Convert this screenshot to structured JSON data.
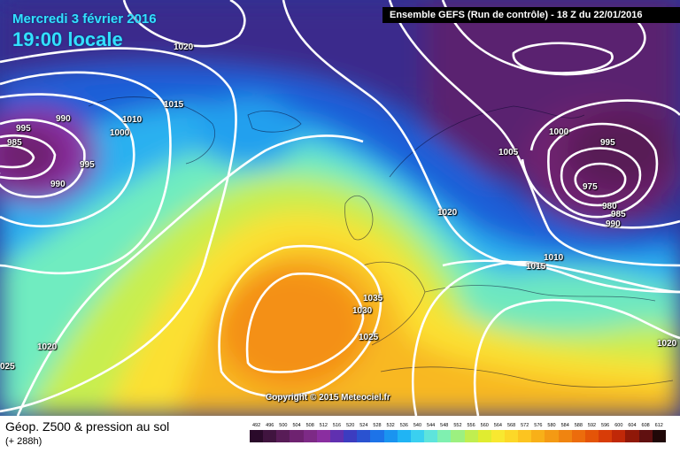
{
  "header": {
    "date": "Mercredi 3 février 2016",
    "time": "19:00 locale",
    "run_info": "Ensemble GEFS  (Run de contrôle)  -  18 Z du 22/01/2016"
  },
  "copyright": "Copyright © 2015 Meteociel.fr",
  "footer": {
    "title": "Géop. Z500 & pression au sol",
    "subtitle": "(+ 288h)"
  },
  "isobar_labels": [
    {
      "text": "1020"
    },
    {
      "text": "995"
    },
    {
      "text": "990"
    },
    {
      "text": "1010"
    },
    {
      "text": "1000"
    },
    {
      "text": "1015"
    },
    {
      "text": "985"
    },
    {
      "text": "995"
    },
    {
      "text": "990"
    },
    {
      "text": "1000"
    },
    {
      "text": "995"
    },
    {
      "text": "1005"
    },
    {
      "text": "975"
    },
    {
      "text": "980"
    },
    {
      "text": "985"
    },
    {
      "text": "990"
    },
    {
      "text": "1020"
    },
    {
      "text": "1010"
    },
    {
      "text": "1015"
    },
    {
      "text": "1035"
    },
    {
      "text": "1030"
    },
    {
      "text": "1025"
    },
    {
      "text": "1020"
    },
    {
      "text": "025"
    },
    {
      "text": "1020"
    }
  ],
  "legend": {
    "values": [
      "492",
      "496",
      "500",
      "504",
      "508",
      "512",
      "516",
      "520",
      "524",
      "528",
      "532",
      "536",
      "540",
      "544",
      "548",
      "552",
      "556",
      "560",
      "564",
      "568",
      "572",
      "576",
      "580",
      "584",
      "588",
      "592",
      "596",
      "600",
      "604",
      "608",
      "612"
    ],
    "colors": [
      "#2a0a2a",
      "#40143f",
      "#581c57",
      "#6e2270",
      "#7d2a86",
      "#8a2ea0",
      "#6030b0",
      "#3c3cc0",
      "#2a52d0",
      "#1d73e8",
      "#1a94f0",
      "#20b4f4",
      "#3ad0f0",
      "#5ee4dc",
      "#7ff0b0",
      "#9cf080",
      "#c0ee50",
      "#e0ec30",
      "#f8e830",
      "#fcd828",
      "#fcc420",
      "#f8b018",
      "#f49a14",
      "#f08410",
      "#ec6c0c",
      "#e45408",
      "#d83c08",
      "#c02808",
      "#901808",
      "#601010",
      "#200808"
    ]
  }
}
